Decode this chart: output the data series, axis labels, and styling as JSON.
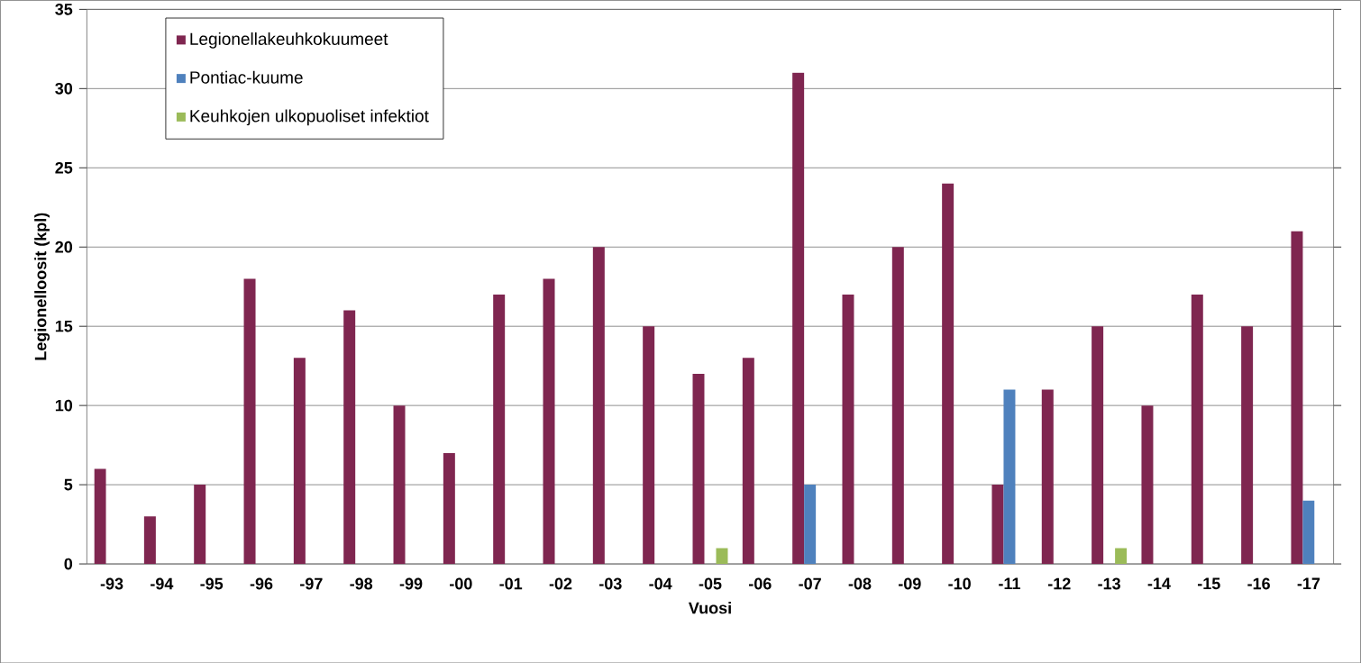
{
  "chart_data": {
    "type": "bar",
    "xlabel": "Vuosi",
    "ylabel": "Legionelloosit (kpl)",
    "categories": [
      "-93",
      "-94",
      "-95",
      "-96",
      "-97",
      "-98",
      "-99",
      "-00",
      "-01",
      "-02",
      "-03",
      "-04",
      "-05",
      "-06",
      "-07",
      "-08",
      "-09",
      "-10",
      "-11",
      "-12",
      "-13",
      "-14",
      "-15",
      "-16",
      "-17"
    ],
    "series": [
      {
        "name": "Legionellakeuhkokuumeet",
        "color": "#7f2650",
        "values": [
          6,
          3,
          5,
          18,
          13,
          16,
          10,
          7,
          17,
          18,
          20,
          15,
          12,
          13,
          31,
          17,
          20,
          24,
          5,
          11,
          15,
          10,
          17,
          15,
          21
        ]
      },
      {
        "name": "Pontiac-kuume",
        "color": "#4f81bd",
        "values": [
          0,
          0,
          0,
          0,
          0,
          0,
          0,
          0,
          0,
          0,
          0,
          0,
          0,
          0,
          5,
          0,
          0,
          0,
          11,
          0,
          0,
          0,
          0,
          0,
          4
        ]
      },
      {
        "name": "Keuhkojen ulkopuoliset infektiot",
        "color": "#9bbb59",
        "values": [
          0,
          0,
          0,
          0,
          0,
          0,
          0,
          0,
          0,
          0,
          0,
          0,
          1,
          0,
          0,
          0,
          0,
          0,
          0,
          0,
          1,
          0,
          0,
          0,
          0
        ]
      }
    ],
    "ylim": [
      0,
      35
    ],
    "yticks": [
      0,
      5,
      10,
      15,
      20,
      25,
      30,
      35
    ],
    "grid": "y",
    "legend": "top left"
  }
}
